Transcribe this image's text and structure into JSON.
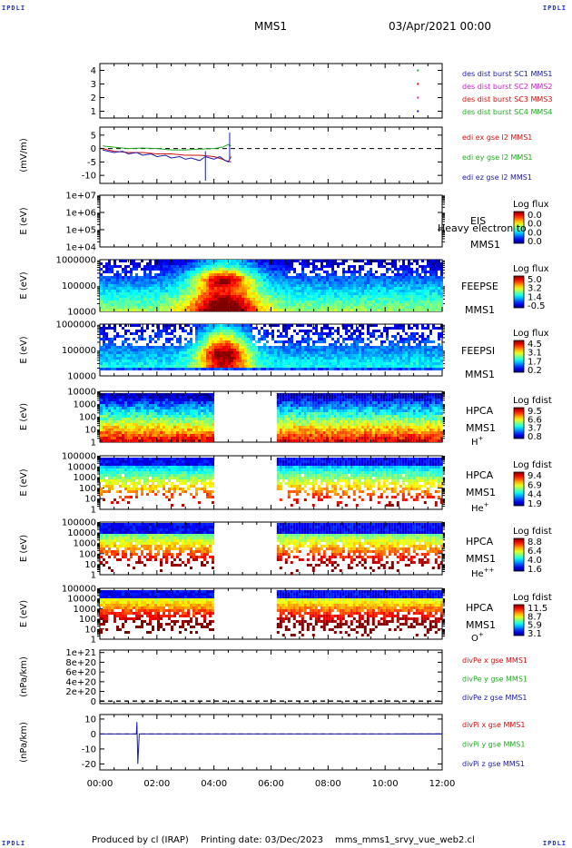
{
  "corner_label": "IPDLI",
  "header": {
    "spacecraft": "MMS1",
    "datetime": "03/Apr/2021 00:00"
  },
  "footer": {
    "producer": "Produced by cl (IRAP)",
    "printing": "Printing date: 03/Dec/2023",
    "script": "mms_mms1_srvy_vue_web2.cl"
  },
  "chart_data": {
    "type": "stacked_panels",
    "x_ticks": [
      "00:00",
      "02:00",
      "04:00",
      "06:00",
      "08:00",
      "10:00",
      "12:00"
    ],
    "x_range_hours": [
      0,
      12
    ],
    "panels": [
      {
        "id": "burst",
        "kind": "line",
        "yticks": [
          "1",
          "2",
          "3",
          "4"
        ],
        "ylim": [
          0.5,
          4.5
        ],
        "series": [
          {
            "name": "des dist burst SC1 MMS1",
            "color": "#1a1aaa",
            "x": [
              11.15
            ],
            "y": [
              1.0
            ]
          },
          {
            "name": "des dist burst SC2 MMS2",
            "color": "#cc22cc",
            "x": [
              11.15
            ],
            "y": [
              2.0
            ]
          },
          {
            "name": "des dist burst SC3 MMS3",
            "color": "#cc1111",
            "x": [
              11.15
            ],
            "y": [
              3.0
            ]
          },
          {
            "name": "des dist burst SC4 MMS4",
            "color": "#22aa22",
            "x": [
              11.15
            ],
            "y": [
              4.0
            ]
          }
        ]
      },
      {
        "id": "edi",
        "kind": "line",
        "ylabel": "(mV/m)",
        "yticks": [
          "-10",
          "-5",
          "0",
          "5"
        ],
        "ylim": [
          -13,
          8
        ],
        "zero_line": true,
        "series": [
          {
            "name": "edi ex gse l2 MMS1",
            "color": "#cc1111",
            "x": [
              0.1,
              0.5,
              1,
              1.5,
              2,
              2.5,
              3,
              3.5,
              4,
              4.3,
              4.5,
              4.6
            ],
            "y": [
              0,
              -1,
              -1.5,
              -1.5,
              -2,
              -2,
              -2.5,
              -2.5,
              -3,
              -4,
              -5,
              -3
            ]
          },
          {
            "name": "edi ey gse l2 MMS1",
            "color": "#22aa22",
            "x": [
              0.1,
              0.5,
              1,
              1.5,
              2,
              2.5,
              3,
              3.5,
              4,
              4.3,
              4.5,
              4.6
            ],
            "y": [
              1,
              0.5,
              0,
              0.2,
              0,
              -0.5,
              -0.5,
              -0.2,
              0,
              0.5,
              1.5,
              1
            ]
          },
          {
            "name": "edi ez gse l2 MMS1",
            "color": "#1a1aaa",
            "x": [
              0.1,
              0.3,
              0.5,
              0.8,
              1,
              1.3,
              1.5,
              1.8,
              2,
              2.3,
              2.5,
              2.8,
              3,
              3.2,
              3.5,
              3.7,
              4,
              4.2,
              4.4,
              4.6
            ],
            "y": [
              -0.5,
              -1,
              -1.5,
              -1,
              -2,
              -1.5,
              -2.5,
              -2,
              -3,
              -2.5,
              -3.5,
              -3,
              -4,
              -3.5,
              -4.5,
              -3,
              -4,
              -3,
              -4.5,
              -5
            ]
          }
        ]
      },
      {
        "id": "eis",
        "kind": "spectrogram",
        "ylabel": "E (eV)",
        "log": true,
        "yticks": [
          "1e+04",
          "1e+05",
          "1e+06",
          "1e+07"
        ],
        "colorbar_title": "Log flux",
        "colorbar_ticks": [
          "0.0",
          "0.0",
          "0.0",
          "0.0"
        ],
        "right_labels": [
          "EIS",
          "MMS1"
        ],
        "overlay_text": "Heavy electron to",
        "intervals": []
      },
      {
        "id": "feepse",
        "kind": "spectrogram",
        "ylabel": "E (eV)",
        "log": true,
        "yticks": [
          "10000",
          "100000",
          "1000000"
        ],
        "colorbar_title": "Log flux",
        "colorbar_ticks": [
          "5.0",
          "3.2",
          "1.4",
          "-0.5"
        ],
        "right_labels": [
          "FEEPSE",
          "MMS1"
        ],
        "intervals": [
          [
            0.0,
            12.0
          ]
        ],
        "style": "feepse"
      },
      {
        "id": "feepsi",
        "kind": "spectrogram",
        "ylabel": "E (eV)",
        "log": true,
        "yticks": [
          "10000",
          "100000",
          "1000000"
        ],
        "colorbar_title": "Log flux",
        "colorbar_ticks": [
          "4.5",
          "3.1",
          "1.7",
          "0.2"
        ],
        "right_labels": [
          "FEEPSI",
          "MMS1"
        ],
        "intervals": [
          [
            0.0,
            12.0
          ]
        ],
        "style": "feepsi"
      },
      {
        "id": "hpca_h",
        "kind": "spectrogram",
        "ylabel": "E (eV)",
        "log": true,
        "yticks": [
          "1",
          "10",
          "100",
          "1000",
          "10000"
        ],
        "colorbar_title": "Log fdist",
        "colorbar_ticks": [
          "9.5",
          "6.6",
          "3.7",
          "0.8"
        ],
        "right_labels": [
          "HPCA",
          "MMS1"
        ],
        "species": "H",
        "species_sup": "+",
        "intervals": [
          [
            0.0,
            3.95
          ],
          [
            6.2,
            12.0
          ]
        ],
        "style": "h"
      },
      {
        "id": "hpca_he1",
        "kind": "spectrogram",
        "ylabel": "E (eV)",
        "log": true,
        "yticks": [
          "1",
          "10",
          "100",
          "1000",
          "10000",
          "100000"
        ],
        "colorbar_title": "Log fdist",
        "colorbar_ticks": [
          "9.4",
          "6.9",
          "4.4",
          "1.9"
        ],
        "right_labels": [
          "HPCA",
          "MMS1"
        ],
        "species": "He",
        "species_sup": "+",
        "intervals": [
          [
            0.0,
            3.95
          ],
          [
            6.2,
            12.0
          ]
        ],
        "style": "he1"
      },
      {
        "id": "hpca_he2",
        "kind": "spectrogram",
        "ylabel": "E (eV)",
        "log": true,
        "yticks": [
          "1",
          "10",
          "100",
          "1000",
          "10000",
          "100000"
        ],
        "colorbar_title": "Log fdist",
        "colorbar_ticks": [
          "8.8",
          "6.4",
          "4.0",
          "1.6"
        ],
        "right_labels": [
          "HPCA",
          "MMS1"
        ],
        "species": "He",
        "species_sup": "++",
        "intervals": [
          [
            0.0,
            3.95
          ],
          [
            6.2,
            12.0
          ]
        ],
        "style": "he2"
      },
      {
        "id": "hpca_o",
        "kind": "spectrogram",
        "ylabel": "E (eV)",
        "log": true,
        "yticks": [
          "1",
          "10",
          "100",
          "1000",
          "10000",
          "100000"
        ],
        "colorbar_title": "Log fdist",
        "colorbar_ticks": [
          "11.5",
          "8.7",
          "5.9",
          "3.1"
        ],
        "right_labels": [
          "HPCA",
          "MMS1"
        ],
        "species": "O",
        "species_sup": "+",
        "intervals": [
          [
            0.0,
            3.95
          ],
          [
            6.2,
            12.0
          ]
        ],
        "style": "o"
      },
      {
        "id": "divpe",
        "kind": "line",
        "ylabel": "(nPa/km)",
        "yticks": [
          "0",
          "2e+20",
          "4e+20",
          "6e+20",
          "8e+20",
          "1e+21"
        ],
        "ylim": [
          -5e+19,
          1.05e+21
        ],
        "zero_line": true,
        "series": [
          {
            "name": "divPe x gse MMS1",
            "color": "#cc1111",
            "x": [],
            "y": []
          },
          {
            "name": "divPe y gse MMS1",
            "color": "#22aa22",
            "x": [],
            "y": []
          },
          {
            "name": "divPe z gse MMS1",
            "color": "#1a1aaa",
            "x": [],
            "y": []
          }
        ]
      },
      {
        "id": "divpi",
        "kind": "line",
        "ylabel": "(nPa/km)",
        "yticks": [
          "-20",
          "-10",
          "0",
          "10"
        ],
        "ylim": [
          -24,
          13
        ],
        "zero_line": true,
        "series": [
          {
            "name": "divPi x gse MMS1",
            "color": "#cc1111",
            "x": [],
            "y": []
          },
          {
            "name": "divPi y gse MMS1",
            "color": "#22aa22",
            "x": [],
            "y": []
          },
          {
            "name": "divPi z gse MMS1",
            "color": "#1a1aaa",
            "x": [
              0.0,
              1.2,
              1.28,
              1.3,
              1.33,
              1.38,
              2.3,
              10.5,
              12.0
            ],
            "y": [
              0,
              0,
              0,
              8,
              -20,
              0,
              0,
              0,
              0
            ]
          }
        ]
      }
    ]
  }
}
